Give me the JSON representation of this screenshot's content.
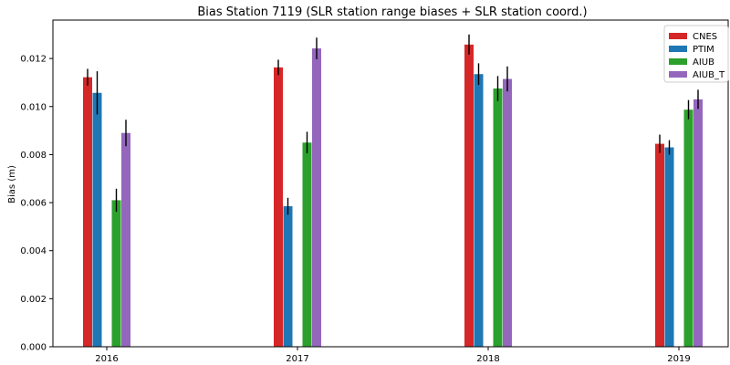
{
  "chart_data": {
    "type": "bar",
    "title": "Bias Station 7119 (SLR station range biases + SLR station coord.)",
    "xlabel": "",
    "ylabel": "Bias (m)",
    "categories": [
      "2016",
      "2017",
      "2018",
      "2019"
    ],
    "ylim": [
      0,
      0.0136
    ],
    "yticks": [
      "0.000",
      "0.002",
      "0.004",
      "0.006",
      "0.008",
      "0.010",
      "0.012"
    ],
    "grid": false,
    "legend_position": "top-right",
    "series": [
      {
        "name": "CNES",
        "color": "#d62728",
        "values": [
          0.01122,
          0.01163,
          0.01258,
          0.00845
        ],
        "errors": [
          0.00035,
          0.00032,
          0.00042,
          0.00038
        ]
      },
      {
        "name": "PTIM",
        "color": "#1f77b4",
        "values": [
          0.01057,
          0.00585,
          0.01135,
          0.0083
        ],
        "errors": [
          0.0009,
          0.00035,
          0.00045,
          0.0003
        ]
      },
      {
        "name": "AIUB",
        "color": "#2ca02c",
        "values": [
          0.0061,
          0.0085,
          0.01075,
          0.00987
        ],
        "errors": [
          0.00048,
          0.00045,
          0.00052,
          0.0004
        ]
      },
      {
        "name": "AIUB_T",
        "color": "#9467bd",
        "values": [
          0.0089,
          0.01242,
          0.01115,
          0.0103
        ],
        "errors": [
          0.00055,
          0.00045,
          0.00052,
          0.0004
        ]
      }
    ]
  }
}
